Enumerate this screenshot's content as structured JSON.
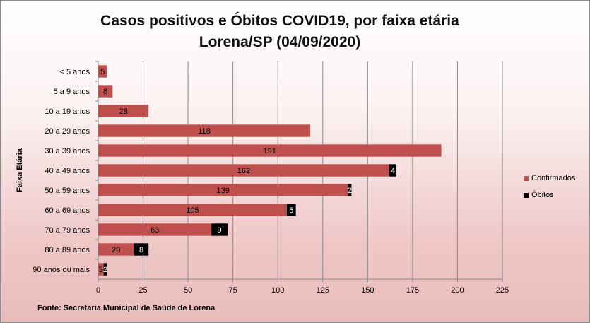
{
  "chart_data": {
    "type": "bar",
    "orientation": "horizontal",
    "stacked": true,
    "title_lines": [
      "Casos positivos e Óbitos COVID19, por faixa etária",
      "Lorena/SP (04/09/2020)"
    ],
    "ylabel": "Faixa Etária",
    "xlabel": "",
    "xlim": [
      0,
      225
    ],
    "x_ticks": [
      0,
      25,
      50,
      75,
      100,
      125,
      150,
      175,
      200,
      225
    ],
    "grid": true,
    "legend_position": "right",
    "categories": [
      "< 5 anos",
      "5 a 9 anos",
      "10 a 19 anos",
      "20 a 29 anos",
      "30 a 39 anos",
      "40 a 49 anos",
      "50 a 59 anos",
      "60 a 69 anos",
      "70 a 79 anos",
      "80 a 89 anos",
      "90 anos ou mais"
    ],
    "series": [
      {
        "name": "Confirmados",
        "color": "#c0504d",
        "values": [
          5,
          8,
          28,
          118,
          191,
          162,
          139,
          105,
          63,
          20,
          3
        ],
        "labels": [
          "5",
          "8",
          "28",
          "118",
          "191",
          "162",
          "139",
          "105",
          "63",
          "20",
          "3"
        ]
      },
      {
        "name": "Óbitos",
        "color": "#000000",
        "values": [
          0,
          0,
          0,
          0,
          0,
          4,
          2,
          5,
          9,
          8,
          2
        ],
        "labels": [
          "",
          "",
          "",
          "",
          "",
          "4",
          "2",
          "5",
          "9",
          "8",
          "2"
        ]
      }
    ]
  },
  "source": "Fonte: Secretaria Municipal  de Saúde de Lorena"
}
